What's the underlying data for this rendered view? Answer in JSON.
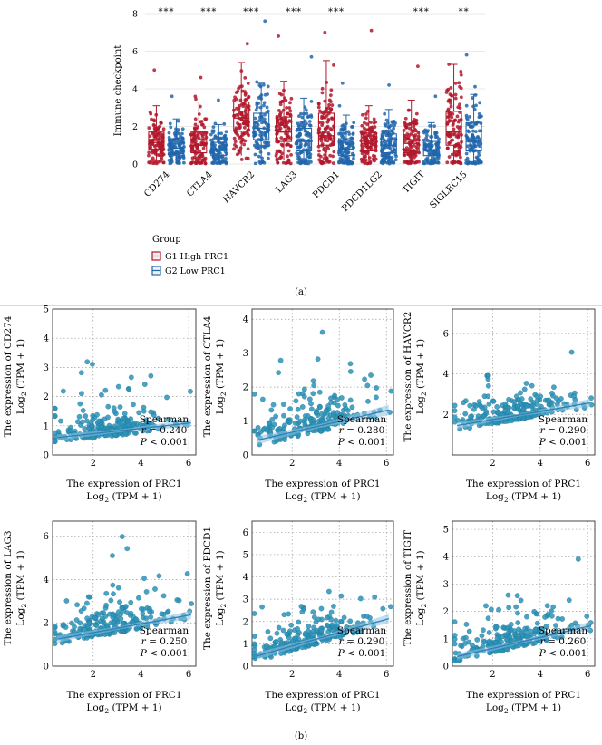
{
  "chart_data": [
    {
      "panel": "a",
      "type": "box",
      "ylabel": "Immune checkpoint",
      "ylim": [
        0,
        8
      ],
      "yticks": [
        0,
        2,
        4,
        6,
        8
      ],
      "categories": [
        "CD274",
        "CTLA4",
        "HAVCR2",
        "LAG3",
        "PDCD1",
        "PDCD1LG2",
        "TIGIT",
        "SIGLEC15"
      ],
      "significance": [
        "***",
        "***",
        "***",
        "***",
        "***",
        "",
        "***",
        "**"
      ],
      "legend_title": "Group",
      "series": [
        {
          "name": "G1 High PRC1",
          "color": "#b2182b",
          "boxes": [
            {
              "q1": 0.8,
              "median": 1.15,
              "q3": 1.7,
              "lo": 0.05,
              "hi": 3.1,
              "max": 5.0
            },
            {
              "q1": 0.6,
              "median": 1.0,
              "q3": 1.7,
              "lo": 0.0,
              "hi": 3.3,
              "max": 4.6
            },
            {
              "q1": 1.75,
              "median": 2.45,
              "q3": 3.3,
              "lo": 0.45,
              "hi": 5.4,
              "max": 6.4
            },
            {
              "q1": 1.2,
              "median": 1.7,
              "q3": 2.5,
              "lo": 0.2,
              "hi": 4.4,
              "max": 6.8
            },
            {
              "q1": 1.0,
              "median": 1.5,
              "q3": 2.7,
              "lo": 0.0,
              "hi": 5.5,
              "max": 7.0
            },
            {
              "q1": 0.7,
              "median": 1.1,
              "q3": 1.65,
              "lo": 0.0,
              "hi": 3.1,
              "max": 7.1
            },
            {
              "q1": 0.6,
              "median": 1.1,
              "q3": 1.75,
              "lo": 0.0,
              "hi": 3.4,
              "max": 5.2
            },
            {
              "q1": 1.0,
              "median": 1.7,
              "q3": 2.8,
              "lo": 0.0,
              "hi": 5.3,
              "max": 5.3
            }
          ]
        },
        {
          "name": "G2 Low PRC1",
          "color": "#2166ac",
          "boxes": [
            {
              "q1": 0.55,
              "median": 0.85,
              "q3": 1.3,
              "lo": 0.0,
              "hi": 2.4,
              "max": 3.6
            },
            {
              "q1": 0.45,
              "median": 0.75,
              "q3": 1.15,
              "lo": 0.0,
              "hi": 2.1,
              "max": 3.4
            },
            {
              "q1": 1.3,
              "median": 1.9,
              "q3": 2.7,
              "lo": 0.3,
              "hi": 4.3,
              "max": 7.6
            },
            {
              "q1": 0.7,
              "median": 1.2,
              "q3": 1.9,
              "lo": 0.0,
              "hi": 3.5,
              "max": 5.7
            },
            {
              "q1": 0.45,
              "median": 0.8,
              "q3": 1.35,
              "lo": 0.0,
              "hi": 2.6,
              "max": 4.3
            },
            {
              "q1": 0.6,
              "median": 1.0,
              "q3": 1.6,
              "lo": 0.0,
              "hi": 2.9,
              "max": 4.2
            },
            {
              "q1": 0.45,
              "median": 0.7,
              "q3": 1.2,
              "lo": 0.0,
              "hi": 2.2,
              "max": 3.6
            },
            {
              "q1": 0.7,
              "median": 1.2,
              "q3": 2.2,
              "lo": 0.0,
              "hi": 3.7,
              "max": 5.8
            }
          ]
        }
      ],
      "label": "(a)"
    },
    {
      "panel": "b",
      "type": "scatter",
      "xlabel": "The expression of PRC1",
      "xlabel2_pre": "Log",
      "xlabel2_sub": "2",
      "xlabel2_post": " (TPM + 1)",
      "ylabel_pre": "The expression of ",
      "ylabel2_pre": "Log",
      "ylabel2_sub": "2",
      "ylabel2_post": " (TPM + 1)",
      "stat_title": "Spearman",
      "r_prefix": "r = ",
      "p_prefix": "P",
      "xlim": [
        0.3,
        6.3
      ],
      "xticks": [
        2,
        4,
        6
      ],
      "panels": [
        {
          "gene": "CD274",
          "r": "0.240",
          "p": " < 0.001",
          "ylim": [
            0,
            5
          ],
          "yticks": [
            0,
            1,
            2,
            3,
            4,
            5
          ],
          "intercept": 0.55,
          "slope": 0.09,
          "spread": 0.6,
          "seed": 11
        },
        {
          "gene": "CTLA4",
          "r": "0.280",
          "p": " < 0.001",
          "ylim": [
            0,
            4.3
          ],
          "yticks": [
            0,
            1,
            2,
            3,
            4
          ],
          "intercept": 0.35,
          "slope": 0.16,
          "spread": 0.7,
          "seed": 23
        },
        {
          "gene": "HAVCR2",
          "r": "0.290",
          "p": " < 0.001",
          "ylim": [
            0,
            7.2
          ],
          "yticks": [
            2,
            4,
            6
          ],
          "intercept": 1.35,
          "slope": 0.2,
          "spread": 0.9,
          "seed": 37
        },
        {
          "gene": "LAG3",
          "r": "0.250",
          "p": " < 0.001",
          "ylim": [
            0,
            6.7
          ],
          "yticks": [
            0,
            2,
            4,
            6
          ],
          "intercept": 1.15,
          "slope": 0.2,
          "spread": 0.9,
          "seed": 41
        },
        {
          "gene": "PDCD1",
          "r": "0.290",
          "p": " < 0.001",
          "ylim": [
            0,
            6.5
          ],
          "yticks": [
            0,
            1,
            2,
            3,
            4,
            5,
            6
          ],
          "intercept": 0.3,
          "slope": 0.3,
          "spread": 0.9,
          "seed": 53
        },
        {
          "gene": "TIGIT",
          "r": "0.260",
          "p": " < 0.001",
          "ylim": [
            0,
            5.3
          ],
          "yticks": [
            0,
            1,
            2,
            3,
            4,
            5
          ],
          "intercept": 0.25,
          "slope": 0.2,
          "spread": 0.7,
          "seed": 67
        }
      ],
      "label": "(b)"
    }
  ],
  "colors": {
    "scatter_point": "#2b93b9",
    "scatter_line": "#2f7fb8",
    "band": "#8cc3e0"
  }
}
